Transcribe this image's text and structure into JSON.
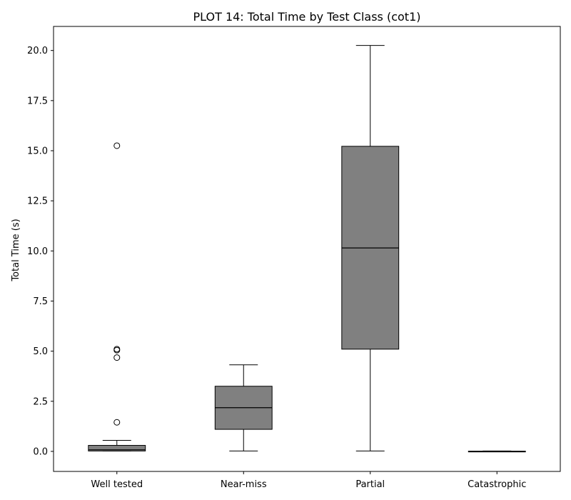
{
  "chart_data": {
    "type": "box",
    "title": "PLOT 14: Total Time by Test Class (cot1)",
    "xlabel": "",
    "ylabel": "Total Time (s)",
    "ylim": [
      -1.0,
      21.2
    ],
    "yticks": [
      "0.0",
      "2.5",
      "5.0",
      "7.5",
      "10.0",
      "12.5",
      "15.0",
      "17.5",
      "20.0"
    ],
    "grid": false,
    "colors": {
      "box_fill": "#808080",
      "line": "#000000"
    },
    "categories": [
      "Well tested",
      "Near-miss",
      "Partial",
      "Catastrophic"
    ],
    "boxes": [
      {
        "whisker_low": 0.02,
        "q1": 0.02,
        "median": 0.08,
        "q3": 0.3,
        "whisker_high": 0.55,
        "outliers": [
          1.45,
          4.68,
          5.05,
          5.1,
          15.25
        ]
      },
      {
        "whisker_low": 0.02,
        "q1": 1.1,
        "median": 2.18,
        "q3": 3.25,
        "whisker_high": 4.32,
        "outliers": []
      },
      {
        "whisker_low": 0.02,
        "q1": 5.1,
        "median": 10.15,
        "q3": 15.22,
        "whisker_high": 20.25,
        "outliers": []
      },
      {
        "whisker_low": 0.0,
        "q1": 0.0,
        "median": 0.0,
        "q3": 0.01,
        "whisker_high": 0.02,
        "outliers": []
      }
    ]
  }
}
